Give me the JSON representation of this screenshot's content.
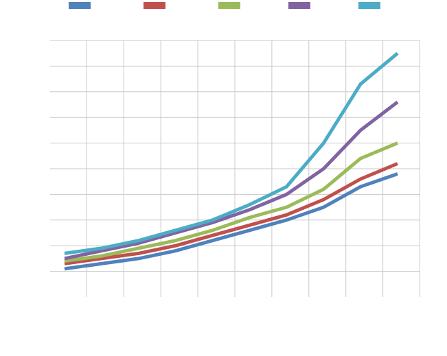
{
  "chart_data": {
    "type": "line",
    "title": "",
    "xlabel": "",
    "ylabel": "",
    "x": [
      1,
      2,
      3,
      4,
      5,
      6,
      7,
      8,
      9,
      10
    ],
    "ylim": [
      0,
      10
    ],
    "grid": true,
    "legend_position": "top",
    "series": [
      {
        "color": "#4f81bd",
        "values": [
          1.1,
          1.3,
          1.5,
          1.8,
          2.2,
          2.6,
          3.0,
          3.5,
          4.3,
          4.8
        ]
      },
      {
        "color": "#c0504d",
        "values": [
          1.3,
          1.5,
          1.7,
          2.0,
          2.4,
          2.8,
          3.2,
          3.8,
          4.6,
          5.2
        ]
      },
      {
        "color": "#9bbb59",
        "values": [
          1.4,
          1.6,
          1.9,
          2.2,
          2.6,
          3.1,
          3.5,
          4.2,
          5.4,
          6.0
        ]
      },
      {
        "color": "#8064a2",
        "values": [
          1.5,
          1.8,
          2.1,
          2.5,
          2.9,
          3.4,
          4.0,
          5.0,
          6.5,
          7.6
        ]
      },
      {
        "color": "#4bacc6",
        "values": [
          1.7,
          1.9,
          2.2,
          2.6,
          3.0,
          3.6,
          4.3,
          6.0,
          8.3,
          9.5
        ]
      }
    ]
  }
}
